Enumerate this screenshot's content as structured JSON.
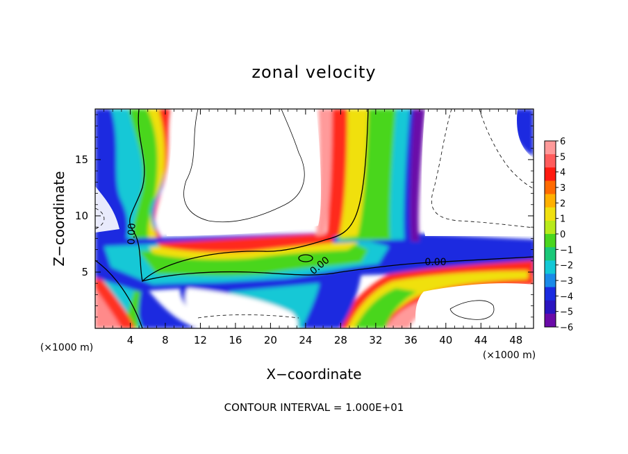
{
  "chart_data": {
    "type": "heatmap",
    "title": "zonal velocity",
    "xlabel": "X−coordinate",
    "ylabel": "Z−coordinate",
    "x_unit": "(×1000 m)",
    "z_unit": "(×1000 m)",
    "xlim": [
      0,
      50
    ],
    "ylim": [
      0,
      19.5
    ],
    "x_ticks": [
      4,
      8,
      12,
      16,
      20,
      24,
      28,
      32,
      36,
      40,
      44,
      48
    ],
    "y_ticks": [
      5,
      10,
      15
    ],
    "colorbar": {
      "min": -6,
      "max": 6,
      "tick_labels": [
        "6",
        "5",
        "4",
        "3",
        "2",
        "1",
        "0",
        "−1",
        "−2",
        "−3",
        "−4",
        "−5",
        "−6"
      ]
    },
    "contour_labels": [
      {
        "text": "0.00",
        "x": 4.5,
        "z": 8.8
      },
      {
        "text": "0.00",
        "x": 25.3,
        "z": 5.5
      },
      {
        "text": "0.00",
        "x": 39.3,
        "z": 6.0
      }
    ],
    "footer": "CONTOUR INTERVAL =  1.000E+01"
  }
}
